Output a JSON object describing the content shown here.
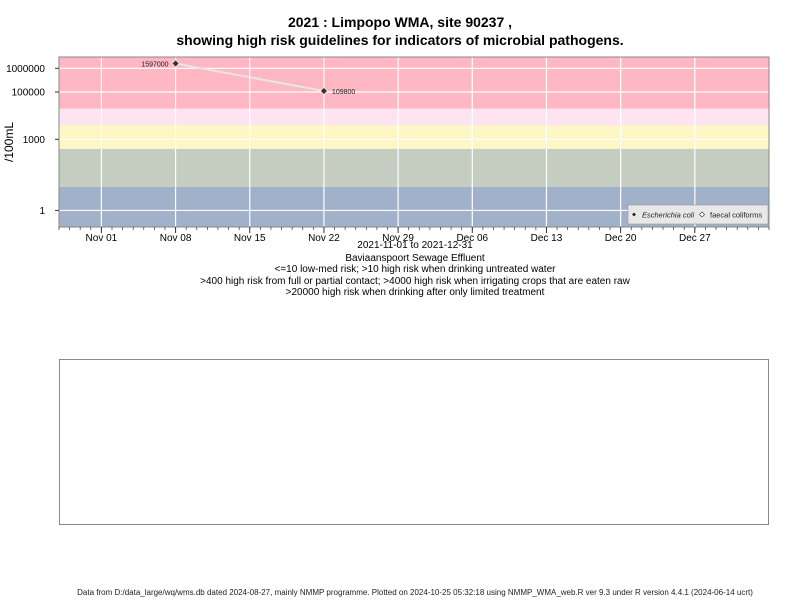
{
  "title_line1": "2021 : Limpopo WMA, site 90237 ,",
  "title_line2": "showing high risk guidelines for indicators of microbial pathogens.",
  "subtitle": [
    "2021-11-01 to 2021-12-31",
    "Baviaanspoort Sewage Effluent",
    "<=10 low-med risk; >10 high risk when drinking untreated water",
    ">400 high risk from full or partial contact; >4000 high risk when irrigating crops that are eaten raw",
    ">20000 high risk when drinking after only limited treatment"
  ],
  "footer": "Data from D:/data_large/wq/wms.db dated 2024-08-27, mainly NMMP programme. Plotted on 2024-10-25 05:32:18 using NMMP_WMA_web.R ver 9.3 under R version 4.4.1 (2024-06-14 ucrt)",
  "chart_data": {
    "type": "line",
    "ylabel": "/100mL",
    "y_scale": "log",
    "y_ticks": [
      {
        "value": 1,
        "label": "1"
      },
      {
        "value": 1000,
        "label": "1000"
      },
      {
        "value": 100000,
        "label": "100000"
      },
      {
        "value": 1000000,
        "label": "1000000"
      }
    ],
    "x_ticks": [
      {
        "date": "2021-11-01",
        "label": "Nov 01"
      },
      {
        "date": "2021-11-08",
        "label": "Nov 08"
      },
      {
        "date": "2021-11-15",
        "label": "Nov 15"
      },
      {
        "date": "2021-11-22",
        "label": "Nov 22"
      },
      {
        "date": "2021-11-29",
        "label": "Nov 29"
      },
      {
        "date": "2021-12-06",
        "label": "Dec 06"
      },
      {
        "date": "2021-12-13",
        "label": "Dec 13"
      },
      {
        "date": "2021-12-20",
        "label": "Dec 20"
      },
      {
        "date": "2021-12-27",
        "label": "Dec 27"
      }
    ],
    "x_range": [
      "2021-10-28",
      "2022-01-03"
    ],
    "y_range": [
      0.2,
      3000000
    ],
    "bands": [
      {
        "from": 0.2,
        "to": 10,
        "color": "#a0b1c9"
      },
      {
        "from": 10,
        "to": 400,
        "color": "#c4cdbf"
      },
      {
        "from": 400,
        "to": 4000,
        "color": "#fef6c4"
      },
      {
        "from": 4000,
        "to": 20000,
        "color": "#fee3f0"
      },
      {
        "from": 20000,
        "to": 3000000,
        "color": "#ffb7c3"
      }
    ],
    "series": [
      {
        "name": "Escherichia coli",
        "color": "#333333",
        "line_color": "#e6e6e6",
        "points": [
          {
            "x": "2021-11-08",
            "y": 1597000,
            "label": "1597000"
          },
          {
            "x": "2021-11-22",
            "y": 109800,
            "label": "109800"
          }
        ]
      },
      {
        "name": "faecal coliforms",
        "color": "#ffffff",
        "points": []
      }
    ],
    "grid": true,
    "legend_position": "bottom-right"
  }
}
